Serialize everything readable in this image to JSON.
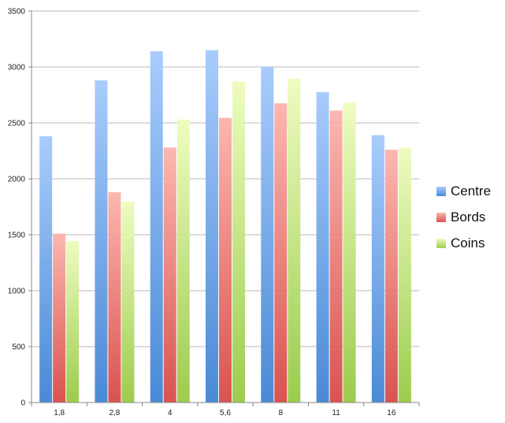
{
  "chart_data": {
    "type": "bar",
    "categories": [
      "1,8",
      "2,8",
      "4",
      "5,6",
      "8",
      "11",
      "16"
    ],
    "series": [
      {
        "name": "Centre",
        "values": [
          2380,
          2880,
          3140,
          3150,
          3000,
          2775,
          2390
        ],
        "color_top": "#a8ccfc",
        "color_bottom": "#4a8ad6"
      },
      {
        "name": "Bords",
        "values": [
          1510,
          1880,
          2280,
          2545,
          2675,
          2610,
          2260
        ],
        "color_top": "#fcb7b0",
        "color_bottom": "#d9534f"
      },
      {
        "name": "Coins",
        "values": [
          1445,
          1795,
          2530,
          2870,
          2895,
          2680,
          2280
        ],
        "color_top": "#eefcc0",
        "color_bottom": "#9ccc4e"
      }
    ],
    "yticks": [
      "0",
      "500",
      "1000",
      "1500",
      "2000",
      "2500",
      "3000",
      "3500"
    ],
    "ylim": [
      0,
      3500
    ],
    "grid": true,
    "legend_position": "right"
  }
}
